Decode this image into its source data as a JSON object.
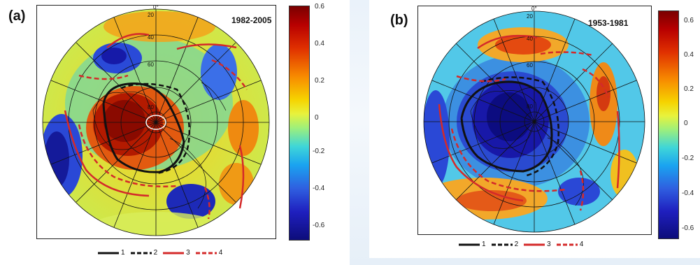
{
  "panels": [
    {
      "label": "(a)",
      "period": "1982-2005",
      "colorbar_ticks": [
        "0.6",
        "0.4",
        "0.2",
        "0",
        "-0.2",
        "-0.4",
        "-0.6"
      ],
      "lat_labels": [
        "0°",
        "20",
        "40",
        "60",
        "80"
      ],
      "legend": [
        "1",
        "2",
        "3",
        "4"
      ]
    },
    {
      "label": "(b)",
      "period": "1953-1981",
      "colorbar_ticks": [
        "0.6",
        "0.4",
        "0.2",
        "0",
        "-0.2",
        "-0.4",
        "-0.6"
      ],
      "lat_labels": [
        "0°",
        "20",
        "40",
        "60",
        "80"
      ],
      "legend": [
        "1",
        "2",
        "3",
        "4"
      ]
    }
  ],
  "colors": {
    "legend_black": "#111111",
    "legend_red": "#d42a2a"
  }
}
